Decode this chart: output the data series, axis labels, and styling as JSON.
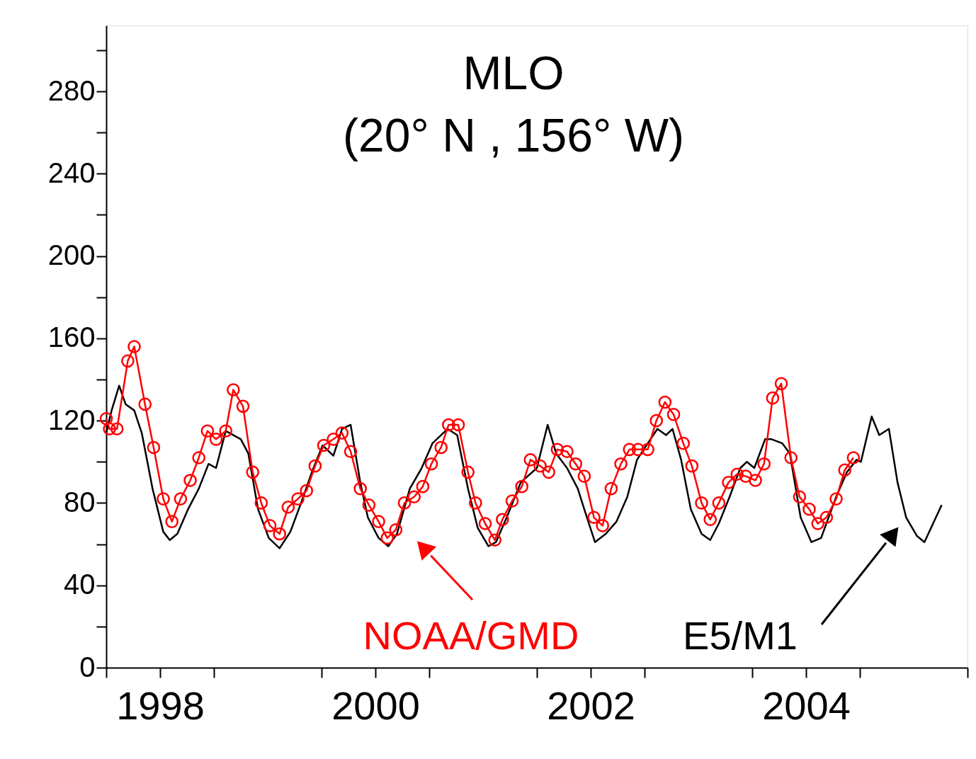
{
  "chart_data": {
    "type": "line",
    "title": "MLO",
    "subtitle": "(20° N , 156° W)",
    "xlim": [
      1998,
      2006
    ],
    "xticks": [
      {
        "value": 1998,
        "label": null
      },
      {
        "value": 1998.5,
        "label": "1998"
      },
      {
        "value": 1999,
        "label": null
      },
      {
        "value": 2000,
        "label": null
      },
      {
        "value": 2000.5,
        "label": "2000"
      },
      {
        "value": 2001,
        "label": null
      },
      {
        "value": 2002,
        "label": null
      },
      {
        "value": 2002.5,
        "label": "2002"
      },
      {
        "value": 2003,
        "label": null
      },
      {
        "value": 2004,
        "label": null
      },
      {
        "value": 2004.5,
        "label": "2004"
      },
      {
        "value": 2005,
        "label": null
      },
      {
        "value": 2006,
        "label": null
      }
    ],
    "ylim": [
      0,
      312
    ],
    "yticks": [
      0,
      {
        "value": 20,
        "label": null
      },
      40,
      {
        "value": 60,
        "label": null
      },
      80,
      {
        "value": 100,
        "label": null
      },
      120,
      {
        "value": 140,
        "label": null
      },
      160,
      {
        "value": 180,
        "label": null
      },
      200,
      {
        "value": 220,
        "label": null
      },
      240,
      {
        "value": 260,
        "label": null
      },
      280,
      {
        "value": 300,
        "label": null
      }
    ],
    "grid": false,
    "legend": "bottom",
    "line_style": "solid",
    "series": [
      {
        "name": "E5/M1",
        "color": "#000000",
        "marker": "none",
        "x": [
          1998.0,
          1998.05,
          1998.12,
          1998.18,
          1998.26,
          1998.33,
          1998.43,
          1998.53,
          1998.59,
          1998.66,
          1998.76,
          1998.86,
          1998.95,
          1999.02,
          1999.11,
          1999.25,
          1999.32,
          1999.41,
          1999.51,
          1999.61,
          1999.71,
          1999.81,
          1999.91,
          2000.01,
          2000.11,
          2000.19,
          2000.27,
          2000.36,
          2000.43,
          2000.53,
          2000.62,
          2000.7,
          2000.82,
          2000.93,
          2001.03,
          2001.17,
          2001.26,
          2001.36,
          2001.45,
          2001.55,
          2001.62,
          2001.72,
          2001.85,
          2002.0,
          2002.1,
          2002.18,
          2002.28,
          2002.38,
          2002.44,
          2002.54,
          2002.64,
          2002.74,
          2002.84,
          2002.93,
          2003.03,
          2003.12,
          2003.2,
          2003.26,
          2003.34,
          2003.43,
          2003.53,
          2003.61,
          2003.69,
          2003.79,
          2003.89,
          2003.95,
          2004.02,
          2004.12,
          2004.18,
          2004.28,
          2004.35,
          2004.45,
          2004.55,
          2004.64,
          2004.78,
          2004.88,
          2004.97,
          2005.01,
          2005.11,
          2005.18,
          2005.27,
          2005.35,
          2005.43,
          2005.53,
          2005.6,
          2005.68,
          2005.76
        ],
        "values": [
          114,
          125,
          137,
          128,
          125,
          114,
          87,
          66,
          62,
          65,
          77,
          87,
          99,
          97,
          115,
          111,
          104,
          77,
          63,
          58,
          66,
          80,
          95,
          108,
          103,
          116,
          118,
          90,
          73,
          63,
          59,
          65,
          87,
          97,
          109,
          116,
          113,
          87,
          68,
          59,
          61,
          73,
          90,
          97,
          118,
          104,
          97,
          87,
          77,
          61,
          65,
          71,
          83,
          101,
          109,
          116,
          113,
          116,
          101,
          77,
          65,
          62,
          70,
          83,
          97,
          100,
          97,
          111,
          111,
          109,
          104,
          73,
          61,
          63,
          83,
          95,
          101,
          100,
          122,
          113,
          116,
          90,
          73,
          64,
          61,
          70,
          79
        ]
      },
      {
        "name": "NOAA/GMD",
        "color": "#ff0000",
        "marker": "circle",
        "x": [
          1998.0,
          1998.03,
          1998.1,
          1998.2,
          1998.26,
          1998.36,
          1998.44,
          1998.53,
          1998.61,
          1998.69,
          1998.78,
          1998.86,
          1998.94,
          1999.02,
          1999.11,
          1999.18,
          1999.27,
          1999.36,
          1999.44,
          1999.52,
          1999.61,
          1999.69,
          1999.78,
          1999.86,
          1999.94,
          2000.02,
          2000.11,
          2000.19,
          2000.27,
          2000.36,
          2000.44,
          2000.53,
          2000.61,
          2000.69,
          2000.77,
          2000.86,
          2000.94,
          2001.02,
          2001.11,
          2001.18,
          2001.27,
          2001.36,
          2001.43,
          2001.52,
          2001.61,
          2001.68,
          2001.77,
          2001.86,
          2001.94,
          2002.03,
          2002.11,
          2002.19,
          2002.28,
          2002.36,
          2002.44,
          2002.53,
          2002.61,
          2002.69,
          2002.78,
          2002.86,
          2002.94,
          2003.03,
          2003.11,
          2003.19,
          2003.27,
          2003.36,
          2003.44,
          2003.53,
          2003.61,
          2003.69,
          2003.78,
          2003.86,
          2003.94,
          2004.03,
          2004.11,
          2004.19,
          2004.27,
          2004.36,
          2004.44,
          2004.53,
          2004.61,
          2004.69,
          2004.78,
          2004.86,
          2004.94
        ],
        "values": [
          121,
          116,
          116,
          149,
          156,
          128,
          107,
          82,
          71,
          82,
          91,
          102,
          115,
          111,
          115,
          135,
          127,
          95,
          80,
          69,
          65,
          78,
          82,
          86,
          98,
          108,
          111,
          114,
          105,
          87,
          79,
          71,
          63,
          67,
          80,
          83,
          88,
          99,
          107,
          118,
          118,
          95,
          80,
          70,
          62,
          72,
          81,
          88,
          101,
          98,
          95,
          106,
          105,
          99,
          93,
          73,
          69,
          87,
          99,
          106,
          106,
          106,
          120,
          129,
          123,
          109,
          98,
          80,
          72,
          80,
          90,
          94,
          93,
          91,
          99,
          131,
          138,
          102,
          83,
          77,
          70,
          73,
          82,
          96,
          102
        ]
      }
    ]
  }
}
